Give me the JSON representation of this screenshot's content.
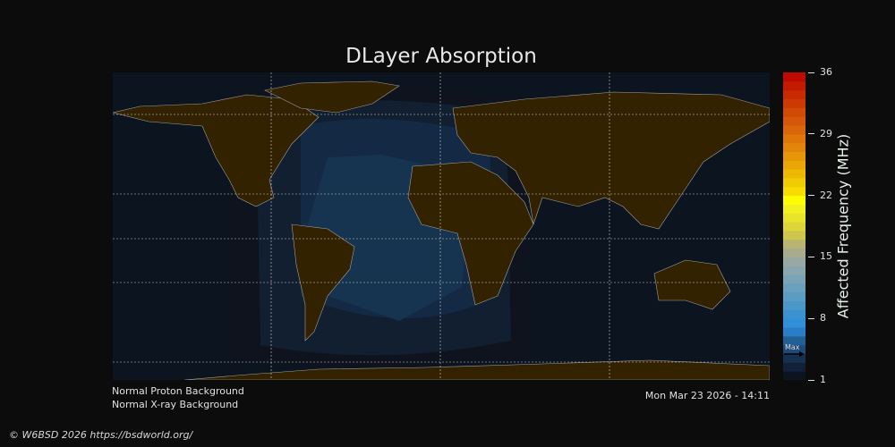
{
  "title": "DLayer Absorption",
  "colorbar": {
    "label": "Affected Frequency (MHz)",
    "ticks": [
      "36",
      "29",
      "22",
      "15",
      "8",
      "1"
    ],
    "range": [
      1,
      36
    ],
    "max_marker": "Max",
    "colors": [
      "#0e1320",
      "#12203a",
      "#16304f",
      "#1d4a78",
      "#215f95",
      "#2a7dc6",
      "#2f8fd8",
      "#3a93d0",
      "#4a98c8",
      "#5a9cc2",
      "#6aa0bc",
      "#7aa3b5",
      "#8aa6ae",
      "#9aa8a3",
      "#a8ac8c",
      "#b8b572",
      "#cdc64c",
      "#dcd63a",
      "#e8e42c",
      "#f2f020",
      "#fffd00",
      "#f6dc00",
      "#f2cc02",
      "#eeb904",
      "#eaa606",
      "#e69608",
      "#e2850a",
      "#de760a",
      "#da660a",
      "#d6560a",
      "#d04a06",
      "#cc3a04",
      "#c82a02",
      "#c41a00",
      "#c00a00"
    ]
  },
  "colors": {
    "land": "#332200",
    "ocean": "#0c1420",
    "coast": "#a0a0a0",
    "grid": "#d0d0d0"
  },
  "footer": {
    "proton": "Normal Proton Background",
    "xray": "Normal X-ray Background",
    "timestamp": "Mon Mar 23 2026 - 14:11",
    "copyright": "© W6BSD 2026 https://bsdworld.org/"
  }
}
